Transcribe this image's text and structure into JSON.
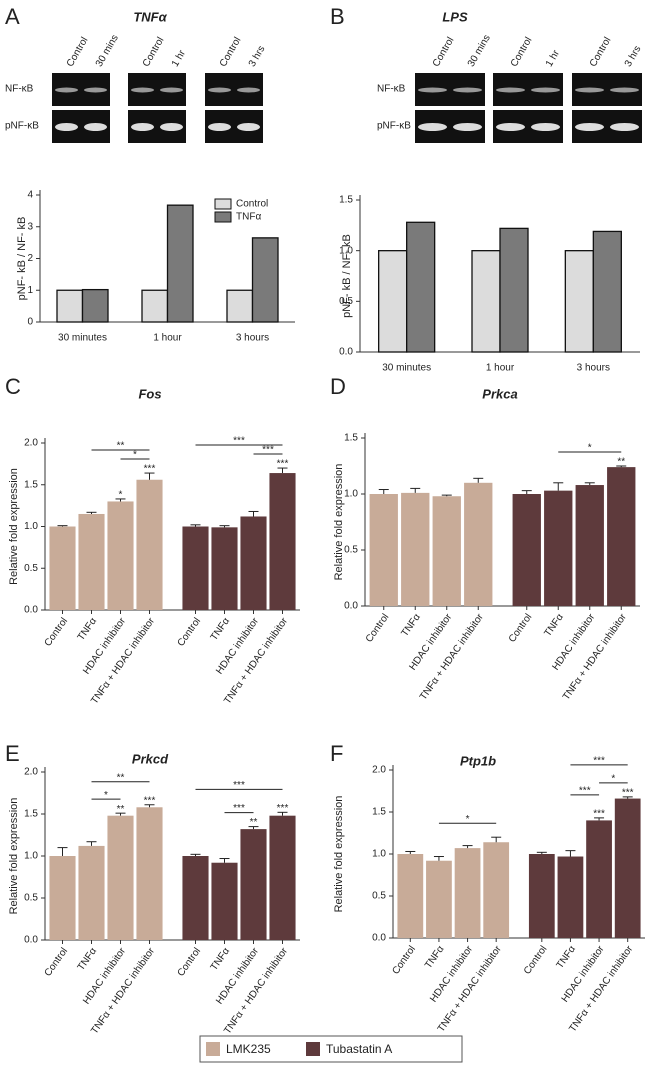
{
  "chart_data": [
    {
      "type": "bar",
      "panel": "A",
      "title": "TNFα",
      "blot_rows": [
        "NF-κB",
        "pNF-κB"
      ],
      "blot_lanes": [
        [
          "Control",
          "30 mins"
        ],
        [
          "Control",
          "1 hr"
        ],
        [
          "Control",
          "3 hrs"
        ]
      ],
      "ylabel": "pNF- kB / NF- kB",
      "categories": [
        "30 minutes",
        "1 hour",
        "3 hours"
      ],
      "series": [
        {
          "name": "Control",
          "color": "#dcdcdc",
          "values": [
            1,
            1,
            1
          ]
        },
        {
          "name": "TNFα",
          "color": "#7a7a7a",
          "values": [
            1.02,
            3.68,
            2.65
          ]
        }
      ],
      "ylim": [
        0,
        4
      ],
      "yticks": [
        0,
        1,
        2,
        3,
        4
      ],
      "legend": "top-right"
    },
    {
      "type": "bar",
      "panel": "B",
      "title": "LPS",
      "blot_rows": [
        "NF-κB",
        "pNF-κB"
      ],
      "blot_lanes": [
        [
          "Control",
          "30 mins"
        ],
        [
          "Control",
          "1 hr"
        ],
        [
          "Control",
          "3 hrs"
        ]
      ],
      "ylabel": "pNF- kB / NF- kB",
      "categories": [
        "30 minutes",
        "1 hour",
        "3 hours"
      ],
      "series": [
        {
          "color": "#dcdcdc",
          "values": [
            1,
            1,
            1
          ]
        },
        {
          "color": "#7a7a7a",
          "values": [
            1.28,
            1.22,
            1.19
          ]
        }
      ],
      "ylim": [
        0,
        1.5
      ],
      "yticks": [
        {
          "value": 0,
          "label": "0.0"
        },
        0.5,
        {
          "value": 1,
          "label": "1.0"
        },
        1.5
      ]
    },
    {
      "type": "grouped-bar",
      "panel": "C",
      "title": "Fos",
      "ylabel": "Relative fold expression",
      "categories": [
        "Control",
        "TNFα",
        "HDAC inhibitor",
        "TNFα + HDAC inhibitor"
      ],
      "series": [
        {
          "color": "#c8ab98",
          "values": [
            1.0,
            1.15,
            1.3,
            1.56
          ],
          "errors": [
            0.01,
            0.02,
            0.03,
            0.08
          ],
          "stars": [
            {
              "index": 2,
              "text": "*"
            },
            {
              "index": 3,
              "text": "***"
            }
          ],
          "brackets": [
            {
              "from": 2,
              "to": 3,
              "text": "*"
            },
            {
              "from": 1,
              "to": 3,
              "text": "**"
            }
          ]
        },
        {
          "color": "#5e3a3c",
          "values": [
            1.0,
            0.99,
            1.12,
            1.64
          ],
          "errors": [
            0.02,
            0.02,
            0.06,
            0.06
          ],
          "stars": [
            {
              "index": 3,
              "text": "***"
            }
          ],
          "brackets": [
            {
              "from": 2,
              "to": 3,
              "text": "***"
            },
            {
              "from": 0,
              "to": 3,
              "text": "***"
            }
          ]
        }
      ],
      "ylim": [
        0,
        2
      ],
      "yticks": [
        {
          "value": 0,
          "label": "0.0"
        },
        0.5,
        {
          "value": 1,
          "label": "1.0"
        },
        1.5,
        {
          "value": 2,
          "label": "2.0"
        }
      ]
    },
    {
      "type": "grouped-bar",
      "panel": "D",
      "title": "Prkca",
      "ylabel": "Relative fold expression",
      "categories": [
        "Control",
        "TNFα",
        "HDAC inhibitor",
        "TNFα + HDAC inhibitor"
      ],
      "series": [
        {
          "color": "#c8ab98",
          "values": [
            1.0,
            1.01,
            0.98,
            1.1
          ],
          "errors": [
            0.04,
            0.04,
            0.01,
            0.04
          ],
          "stars": [],
          "brackets": []
        },
        {
          "color": "#5e3a3c",
          "values": [
            1.0,
            1.03,
            1.08,
            1.24
          ],
          "errors": [
            0.03,
            0.07,
            0.02,
            0.01
          ],
          "stars": [
            {
              "index": 3,
              "text": "**"
            }
          ],
          "brackets": [
            {
              "from": 1,
              "to": 3,
              "text": "*"
            }
          ]
        }
      ],
      "ylim": [
        0,
        1.5
      ],
      "yticks": [
        {
          "value": 0,
          "label": "0.0"
        },
        0.5,
        {
          "value": 1,
          "label": "1.0"
        },
        1.5
      ]
    },
    {
      "type": "grouped-bar",
      "panel": "E",
      "title": "Prkcd",
      "ylabel": "Relative fold expression",
      "categories": [
        "Control",
        "TNFα",
        "HDAC inhibitor",
        "TNFα + HDAC inhibitor"
      ],
      "series": [
        {
          "color": "#c8ab98",
          "values": [
            1.0,
            1.12,
            1.48,
            1.58
          ],
          "errors": [
            0.1,
            0.05,
            0.03,
            0.03
          ],
          "stars": [
            {
              "index": 2,
              "text": "**"
            },
            {
              "index": 3,
              "text": "***"
            }
          ],
          "brackets": [
            {
              "from": 1,
              "to": 2,
              "text": "*"
            },
            {
              "from": 1,
              "to": 3,
              "text": "**"
            }
          ]
        },
        {
          "color": "#5e3a3c",
          "values": [
            1.0,
            0.92,
            1.32,
            1.48
          ],
          "errors": [
            0.02,
            0.05,
            0.03,
            0.04
          ],
          "stars": [
            {
              "index": 2,
              "text": "**"
            },
            {
              "index": 3,
              "text": "***"
            }
          ],
          "brackets": [
            {
              "from": 1,
              "to": 2,
              "text": "***"
            },
            {
              "from": 0,
              "to": 3,
              "text": "***"
            }
          ]
        }
      ],
      "ylim": [
        0,
        2
      ],
      "yticks": [
        {
          "value": 0,
          "label": "0.0"
        },
        0.5,
        {
          "value": 1,
          "label": "1.0"
        },
        1.5,
        {
          "value": 2,
          "label": "2.0"
        }
      ]
    },
    {
      "type": "grouped-bar",
      "panel": "F",
      "title": "Ptp1b",
      "ylabel": "Relative fold expression",
      "categories": [
        "Control",
        "TNFα",
        "HDAC inhibitor",
        "TNFα + HDAC inhibitor"
      ],
      "series": [
        {
          "color": "#c8ab98",
          "values": [
            1.0,
            0.92,
            1.07,
            1.14
          ],
          "errors": [
            0.03,
            0.05,
            0.03,
            0.06
          ],
          "stars": [],
          "brackets": [
            {
              "from": 1,
              "to": 3,
              "text": "*"
            }
          ]
        },
        {
          "color": "#5e3a3c",
          "values": [
            1.0,
            0.97,
            1.4,
            1.66
          ],
          "errors": [
            0.02,
            0.07,
            0.03,
            0.02
          ],
          "stars": [
            {
              "index": 2,
              "text": "***"
            },
            {
              "index": 3,
              "text": "***"
            }
          ],
          "brackets": [
            {
              "from": 2,
              "to": 3,
              "text": "*"
            },
            {
              "from": 1,
              "to": 2,
              "text": "***"
            },
            {
              "from": 1,
              "to": 3,
              "text": "***"
            }
          ]
        }
      ],
      "ylim": [
        0,
        2
      ],
      "yticks": [
        {
          "value": 0,
          "label": "0.0"
        },
        0.5,
        {
          "value": 1,
          "label": "1.0"
        },
        1.5,
        {
          "value": 2,
          "label": "2.0"
        }
      ]
    }
  ],
  "legend": [
    {
      "name": "LMK235",
      "color": "#c8ab98"
    },
    {
      "name": "Tubastatin A",
      "color": "#5e3a3c"
    }
  ]
}
